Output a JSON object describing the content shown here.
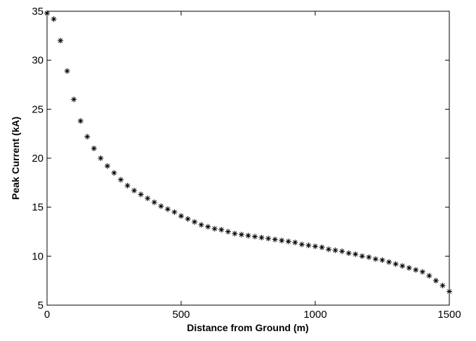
{
  "chart_data": {
    "type": "scatter",
    "xlabel": "Distance from Ground (m)",
    "ylabel": "Peak Current (kA)",
    "x": [
      0,
      25,
      50,
      75,
      100,
      125,
      150,
      175,
      200,
      225,
      250,
      275,
      300,
      325,
      350,
      375,
      400,
      425,
      450,
      475,
      500,
      525,
      550,
      575,
      600,
      625,
      650,
      675,
      700,
      725,
      750,
      775,
      800,
      825,
      850,
      875,
      900,
      925,
      950,
      975,
      1000,
      1025,
      1050,
      1075,
      1100,
      1125,
      1150,
      1175,
      1200,
      1225,
      1250,
      1275,
      1300,
      1325,
      1350,
      1375,
      1400,
      1425,
      1450,
      1475,
      1500
    ],
    "values": [
      34.8,
      34.2,
      32.0,
      28.9,
      26.0,
      23.8,
      22.2,
      21.0,
      20.0,
      19.2,
      18.5,
      17.8,
      17.2,
      16.7,
      16.3,
      15.9,
      15.5,
      15.1,
      14.8,
      14.5,
      14.1,
      13.8,
      13.5,
      13.2,
      13.0,
      12.8,
      12.7,
      12.5,
      12.3,
      12.2,
      12.1,
      12.0,
      11.9,
      11.8,
      11.7,
      11.6,
      11.5,
      11.4,
      11.2,
      11.1,
      11.0,
      10.9,
      10.7,
      10.6,
      10.5,
      10.3,
      10.2,
      10.0,
      9.9,
      9.7,
      9.6,
      9.4,
      9.2,
      9.0,
      8.8,
      8.6,
      8.4,
      8.0,
      7.5,
      7.0,
      6.4
    ],
    "color": "#000000",
    "xlim": [
      0,
      1500
    ],
    "xticks": [
      0,
      500,
      1000,
      1500
    ],
    "ylim": [
      5,
      35
    ],
    "yticks": [
      5,
      10,
      15,
      20,
      25,
      30,
      35
    ]
  }
}
